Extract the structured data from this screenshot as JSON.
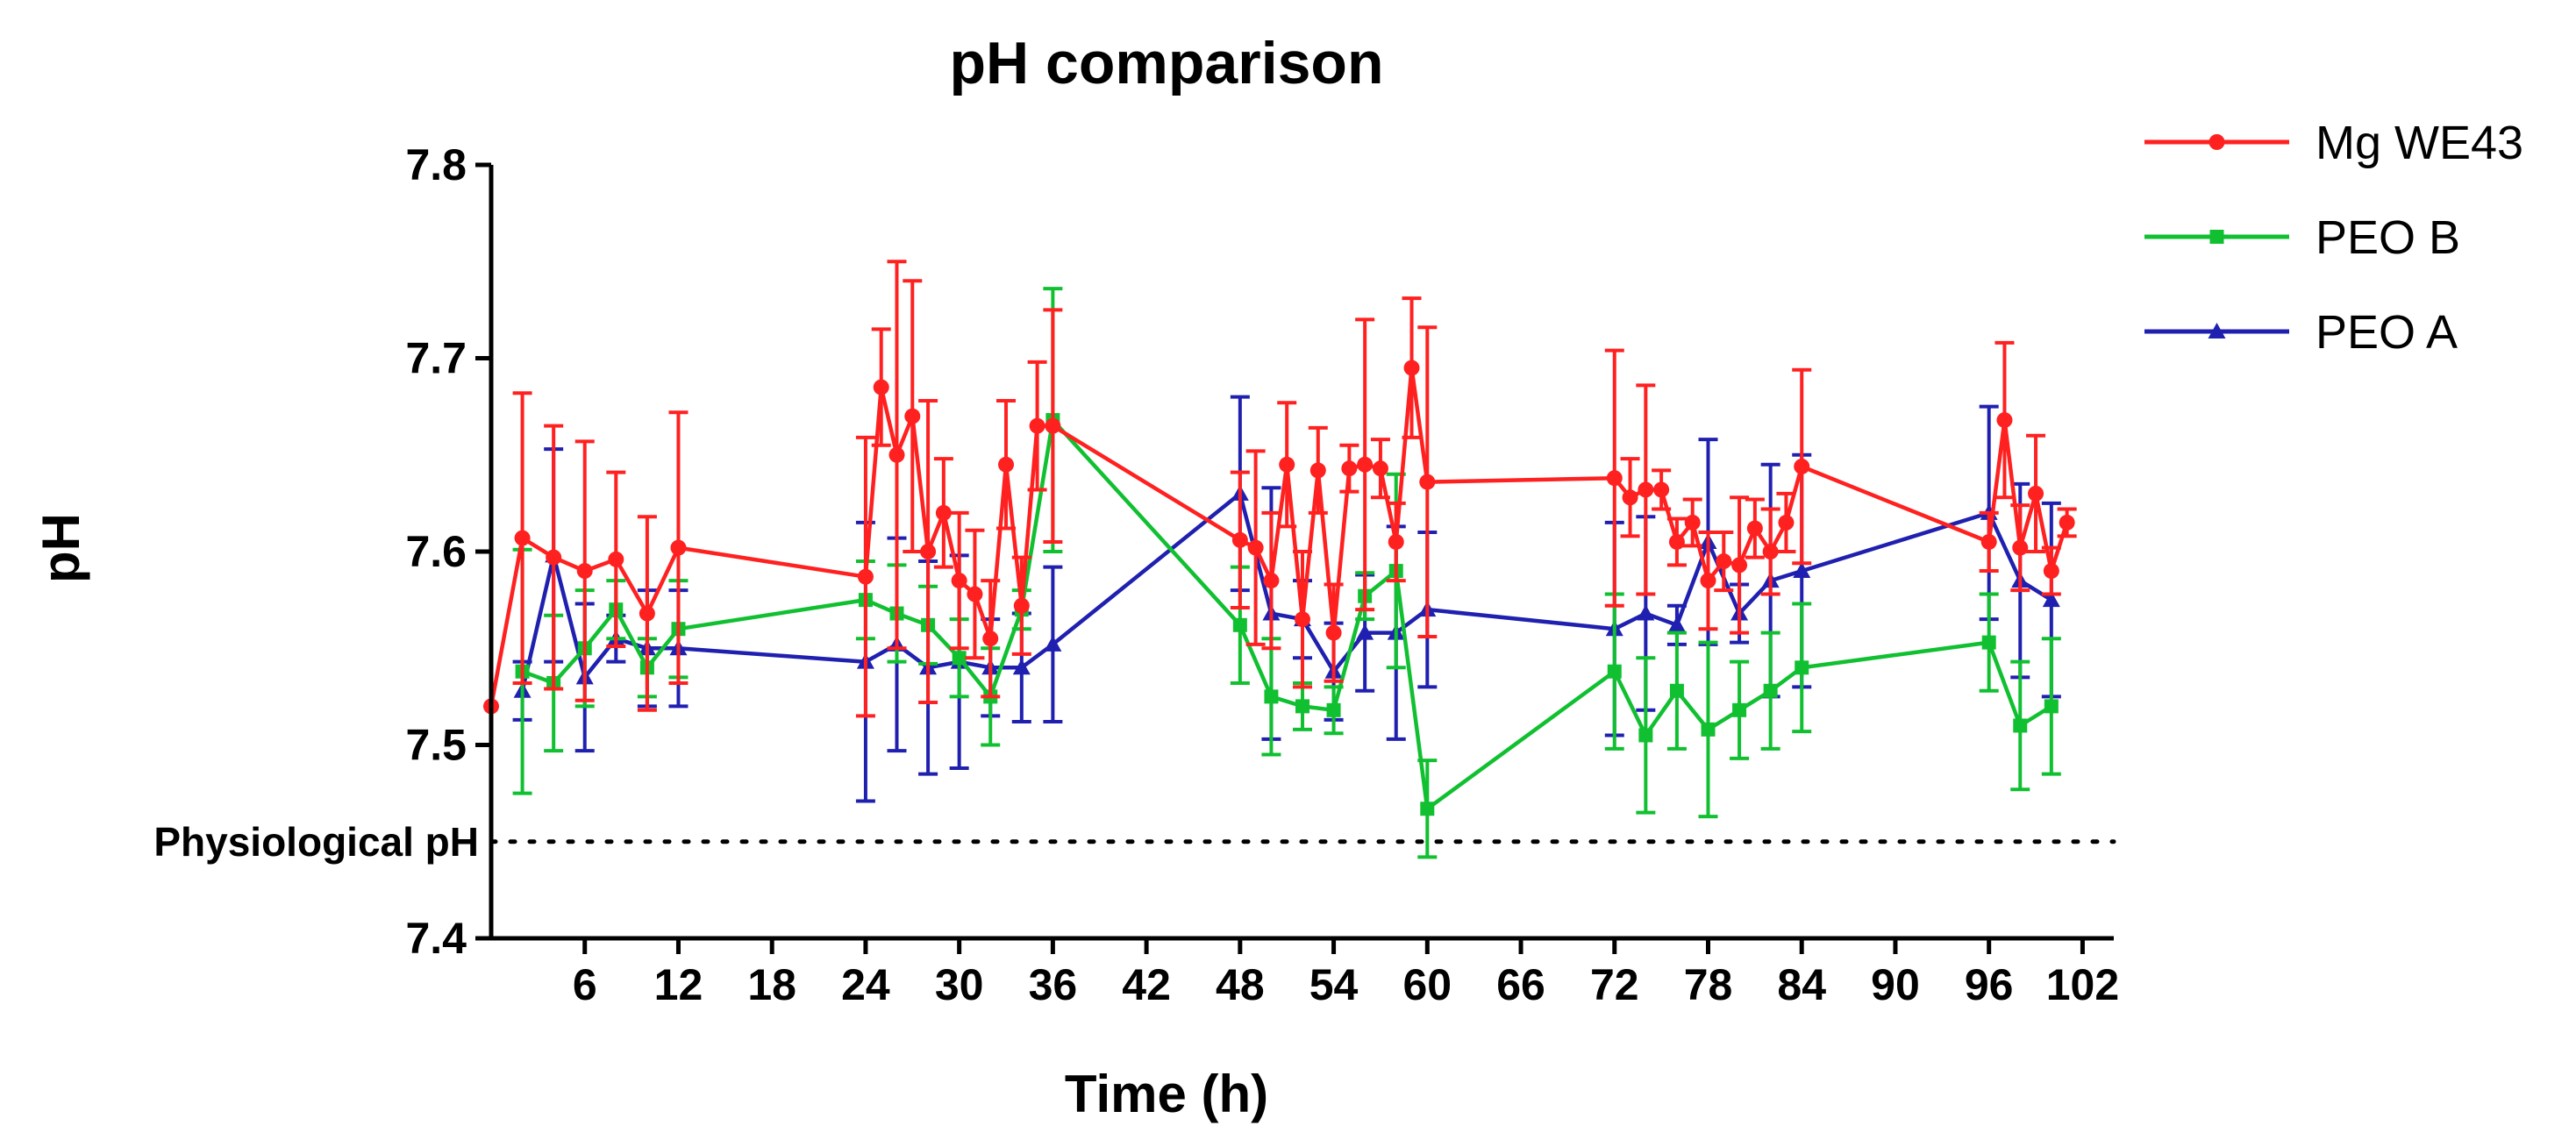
{
  "chart_data": {
    "type": "line",
    "title": "pH comparison",
    "xlabel": "Time (h)",
    "ylabel": "pH",
    "xlim": [
      0,
      104
    ],
    "ylim": [
      7.4,
      7.8
    ],
    "xticks": [
      6,
      12,
      18,
      24,
      30,
      36,
      42,
      48,
      54,
      60,
      66,
      72,
      78,
      84,
      90,
      96,
      102
    ],
    "yticks": [
      7.4,
      7.5,
      7.6,
      7.7,
      7.8
    ],
    "grid": false,
    "legend_position": "top-right",
    "reference_line": {
      "value": 7.45,
      "label": "Physiological pH",
      "style": "dotted"
    },
    "series": [
      {
        "name": "Mg WE43",
        "color": "#ff2020",
        "marker": "circle",
        "x": [
          0,
          2,
          4,
          6,
          8,
          10,
          12,
          24,
          25,
          26,
          27,
          28,
          29,
          30,
          31,
          32,
          33,
          34,
          35,
          36,
          48,
          49,
          50,
          51,
          52,
          53,
          54,
          55,
          56,
          57,
          58,
          59,
          60,
          72,
          73,
          74,
          75,
          76,
          77,
          78,
          79,
          80,
          81,
          82,
          83,
          84,
          96,
          97,
          98,
          99,
          100,
          101
        ],
        "y": [
          7.52,
          7.607,
          7.597,
          7.59,
          7.596,
          7.568,
          7.602,
          7.587,
          7.685,
          7.65,
          7.67,
          7.6,
          7.62,
          7.585,
          7.578,
          7.555,
          7.645,
          7.572,
          7.665,
          7.665,
          7.606,
          7.602,
          7.585,
          7.645,
          7.565,
          7.642,
          7.558,
          7.643,
          7.645,
          7.643,
          7.605,
          7.695,
          7.636,
          7.638,
          7.628,
          7.632,
          7.632,
          7.605,
          7.615,
          7.585,
          7.595,
          7.593,
          7.612,
          7.6,
          7.615,
          7.644,
          7.605,
          7.668,
          7.602,
          7.63,
          7.59,
          7.615
        ],
        "err": [
          0.0,
          0.075,
          0.068,
          0.067,
          0.045,
          0.05,
          0.07,
          0.072,
          0.03,
          0.1,
          0.07,
          0.078,
          0.028,
          0.035,
          0.033,
          0.03,
          0.033,
          0.025,
          0.033,
          0.06,
          0.035,
          0.05,
          0.035,
          0.032,
          0.035,
          0.022,
          0.025,
          0.012,
          0.075,
          0.015,
          0.02,
          0.036,
          0.08,
          0.066,
          0.02,
          0.054,
          0.01,
          0.012,
          0.012,
          0.025,
          0.015,
          0.035,
          0.015,
          0.022,
          0.015,
          0.05,
          0.015,
          0.04,
          0.022,
          0.03,
          0.012,
          0.007
        ]
      },
      {
        "name": "PEO B",
        "color": "#10c030",
        "marker": "square",
        "x": [
          2,
          4,
          6,
          8,
          10,
          12,
          24,
          26,
          28,
          30,
          32,
          34,
          36,
          48,
          50,
          52,
          54,
          56,
          58,
          60,
          72,
          74,
          76,
          78,
          80,
          82,
          84,
          96,
          98,
          100
        ],
        "y": [
          7.538,
          7.532,
          7.55,
          7.57,
          7.54,
          7.56,
          7.575,
          7.568,
          7.562,
          7.545,
          7.525,
          7.57,
          7.668,
          7.562,
          7.525,
          7.52,
          7.518,
          7.577,
          7.59,
          7.467,
          7.538,
          7.505,
          7.528,
          7.508,
          7.518,
          7.528,
          7.54,
          7.553,
          7.51,
          7.52
        ],
        "err": [
          0.063,
          0.035,
          0.03,
          0.015,
          0.015,
          0.025,
          0.02,
          0.025,
          0.02,
          0.02,
          0.025,
          0.01,
          0.068,
          0.03,
          0.03,
          0.012,
          0.012,
          0.012,
          0.05,
          0.025,
          0.04,
          0.04,
          0.03,
          0.045,
          0.025,
          0.03,
          0.033,
          0.025,
          0.033,
          0.035
        ]
      },
      {
        "name": "PEO A",
        "color": "#2020b0",
        "marker": "triangle",
        "x": [
          2,
          4,
          6,
          8,
          10,
          12,
          24,
          26,
          28,
          30,
          32,
          34,
          36,
          48,
          50,
          52,
          54,
          56,
          58,
          60,
          72,
          74,
          76,
          78,
          80,
          82,
          84,
          96,
          98,
          100
        ],
        "y": [
          7.528,
          7.598,
          7.535,
          7.555,
          7.55,
          7.55,
          7.543,
          7.552,
          7.54,
          7.543,
          7.54,
          7.54,
          7.552,
          7.63,
          7.568,
          7.565,
          7.538,
          7.558,
          7.558,
          7.57,
          7.56,
          7.568,
          7.562,
          7.605,
          7.568,
          7.585,
          7.59,
          7.62,
          7.585,
          7.575
        ],
        "err": [
          0.015,
          0.055,
          0.038,
          0.012,
          0.03,
          0.03,
          0.072,
          0.055,
          0.055,
          0.055,
          0.025,
          0.028,
          0.04,
          0.05,
          0.065,
          0.02,
          0.025,
          0.03,
          0.055,
          0.04,
          0.055,
          0.05,
          0.01,
          0.053,
          0.015,
          0.06,
          0.06,
          0.055,
          0.05,
          0.05
        ]
      }
    ]
  }
}
